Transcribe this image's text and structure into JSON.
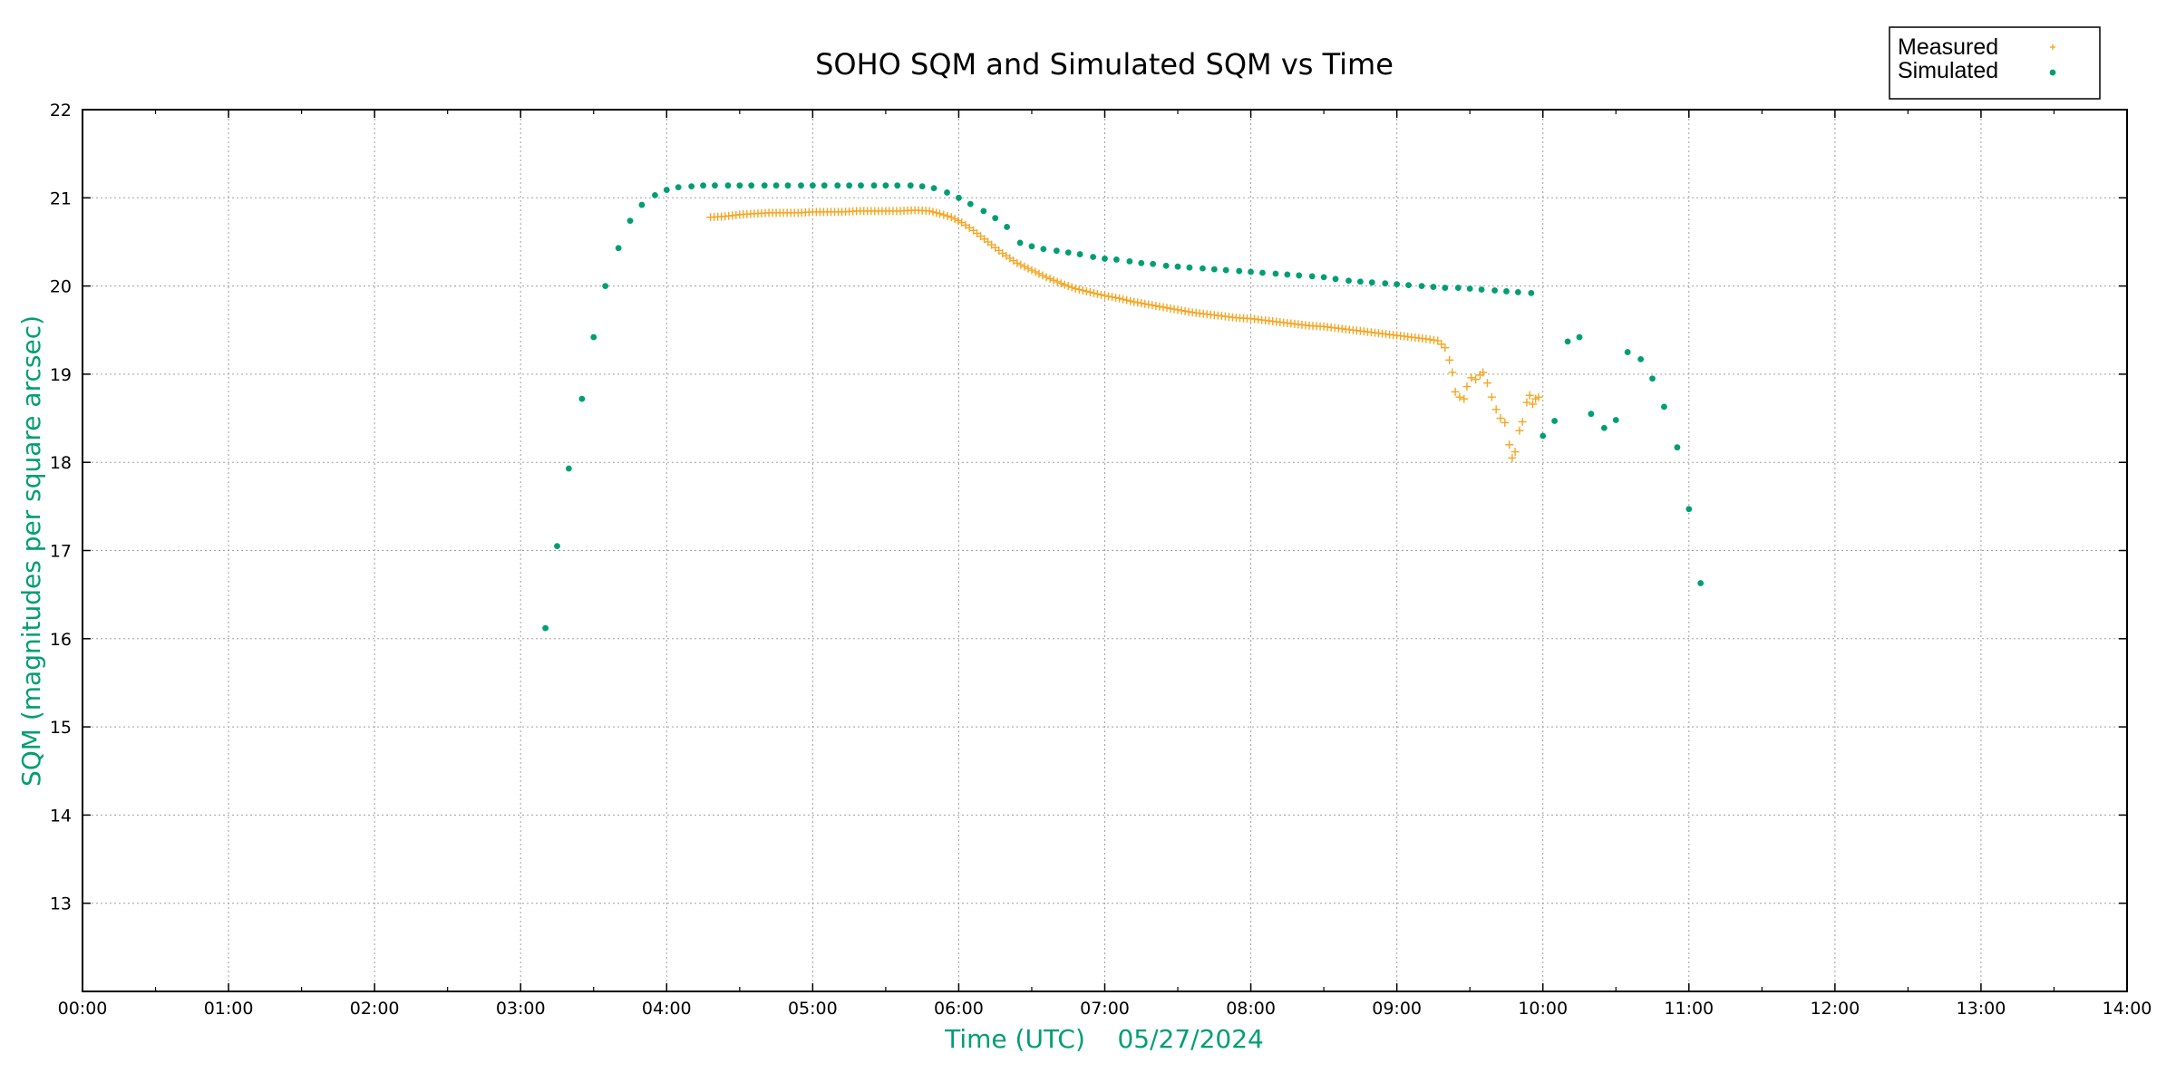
{
  "chart_data": {
    "type": "scatter",
    "title": "SOHO SQM and Simulated SQM vs Time",
    "xlabel": "Time (UTC)    05/27/2024",
    "ylabel": "SQM (magnitudes per square arcsec)",
    "x_unit": "hours UTC",
    "xlim": [
      0,
      14
    ],
    "ylim": [
      12,
      22
    ],
    "xticks": [
      "00:00",
      "01:00",
      "02:00",
      "03:00",
      "04:00",
      "05:00",
      "06:00",
      "07:00",
      "08:00",
      "09:00",
      "10:00",
      "11:00",
      "12:00",
      "13:00",
      "14:00"
    ],
    "yticks": [
      "13",
      "14",
      "15",
      "16",
      "17",
      "18",
      "19",
      "20",
      "21",
      "22"
    ],
    "grid": true,
    "legend_position": "top-right, outside plot",
    "colors": {
      "measured": "#f5a623",
      "simulated": "#009e73",
      "axis_title": "#009e73",
      "grid": "#a0a0a0"
    },
    "series": [
      {
        "name": "Measured",
        "marker": "plus",
        "color": "#f5a623",
        "points": [
          [
            4.3,
            20.78
          ],
          [
            4.4,
            20.79
          ],
          [
            4.5,
            20.81
          ],
          [
            4.6,
            20.82
          ],
          [
            4.7,
            20.83
          ],
          [
            4.8,
            20.83
          ],
          [
            4.9,
            20.83
          ],
          [
            5.0,
            20.84
          ],
          [
            5.1,
            20.84
          ],
          [
            5.2,
            20.84
          ],
          [
            5.3,
            20.85
          ],
          [
            5.4,
            20.85
          ],
          [
            5.5,
            20.85
          ],
          [
            5.6,
            20.85
          ],
          [
            5.7,
            20.86
          ],
          [
            5.8,
            20.85
          ],
          [
            5.87,
            20.82
          ],
          [
            5.95,
            20.78
          ],
          [
            6.02,
            20.72
          ],
          [
            6.1,
            20.63
          ],
          [
            6.2,
            20.5
          ],
          [
            6.3,
            20.37
          ],
          [
            6.4,
            20.26
          ],
          [
            6.5,
            20.18
          ],
          [
            6.6,
            20.1
          ],
          [
            6.7,
            20.03
          ],
          [
            6.8,
            19.97
          ],
          [
            6.9,
            19.93
          ],
          [
            7.0,
            19.89
          ],
          [
            7.1,
            19.86
          ],
          [
            7.2,
            19.82
          ],
          [
            7.3,
            19.79
          ],
          [
            7.4,
            19.76
          ],
          [
            7.5,
            19.73
          ],
          [
            7.6,
            19.7
          ],
          [
            7.7,
            19.68
          ],
          [
            7.8,
            19.66
          ],
          [
            7.9,
            19.64
          ],
          [
            8.0,
            19.63
          ],
          [
            8.1,
            19.61
          ],
          [
            8.2,
            19.59
          ],
          [
            8.3,
            19.57
          ],
          [
            8.4,
            19.55
          ],
          [
            8.5,
            19.54
          ],
          [
            8.6,
            19.52
          ],
          [
            8.7,
            19.5
          ],
          [
            8.8,
            19.48
          ],
          [
            8.9,
            19.46
          ],
          [
            9.0,
            19.44
          ],
          [
            9.1,
            19.42
          ],
          [
            9.2,
            19.4
          ],
          [
            9.28,
            19.38
          ],
          [
            9.33,
            19.3
          ],
          [
            9.36,
            19.16
          ],
          [
            9.38,
            19.02
          ],
          [
            9.4,
            18.8
          ],
          [
            9.43,
            18.74
          ],
          [
            9.46,
            18.72
          ],
          [
            9.48,
            18.86
          ],
          [
            9.51,
            18.96
          ],
          [
            9.54,
            18.94
          ],
          [
            9.57,
            18.99
          ],
          [
            9.59,
            19.02
          ],
          [
            9.62,
            18.9
          ],
          [
            9.65,
            18.74
          ],
          [
            9.68,
            18.6
          ],
          [
            9.71,
            18.5
          ],
          [
            9.74,
            18.45
          ],
          [
            9.77,
            18.2
          ],
          [
            9.79,
            18.05
          ],
          [
            9.81,
            18.12
          ],
          [
            9.84,
            18.36
          ],
          [
            9.86,
            18.46
          ],
          [
            9.89,
            18.68
          ],
          [
            9.91,
            18.76
          ],
          [
            9.93,
            18.66
          ],
          [
            9.95,
            18.72
          ],
          [
            9.97,
            18.74
          ]
        ]
      },
      {
        "name": "Simulated",
        "marker": "dot",
        "color": "#009e73",
        "points": [
          [
            3.17,
            16.12
          ],
          [
            3.25,
            17.05
          ],
          [
            3.33,
            17.93
          ],
          [
            3.42,
            18.72
          ],
          [
            3.5,
            19.42
          ],
          [
            3.58,
            20.0
          ],
          [
            3.67,
            20.43
          ],
          [
            3.75,
            20.74
          ],
          [
            3.83,
            20.92
          ],
          [
            3.92,
            21.03
          ],
          [
            4.0,
            21.09
          ],
          [
            4.08,
            21.12
          ],
          [
            4.17,
            21.13
          ],
          [
            4.25,
            21.14
          ],
          [
            4.33,
            21.14
          ],
          [
            4.42,
            21.14
          ],
          [
            4.5,
            21.14
          ],
          [
            4.58,
            21.14
          ],
          [
            4.67,
            21.14
          ],
          [
            4.75,
            21.14
          ],
          [
            4.83,
            21.14
          ],
          [
            4.92,
            21.14
          ],
          [
            5.0,
            21.14
          ],
          [
            5.08,
            21.14
          ],
          [
            5.17,
            21.14
          ],
          [
            5.25,
            21.14
          ],
          [
            5.33,
            21.14
          ],
          [
            5.42,
            21.14
          ],
          [
            5.5,
            21.14
          ],
          [
            5.58,
            21.14
          ],
          [
            5.67,
            21.14
          ],
          [
            5.75,
            21.13
          ],
          [
            5.83,
            21.11
          ],
          [
            5.92,
            21.06
          ],
          [
            6.0,
            21.0
          ],
          [
            6.08,
            20.93
          ],
          [
            6.17,
            20.85
          ],
          [
            6.25,
            20.77
          ],
          [
            6.33,
            20.67
          ],
          [
            6.42,
            20.49
          ],
          [
            6.5,
            20.45
          ],
          [
            6.58,
            20.42
          ],
          [
            6.67,
            20.4
          ],
          [
            6.75,
            20.38
          ],
          [
            6.83,
            20.36
          ],
          [
            6.92,
            20.33
          ],
          [
            7.0,
            20.31
          ],
          [
            7.08,
            20.3
          ],
          [
            7.17,
            20.28
          ],
          [
            7.25,
            20.26
          ],
          [
            7.33,
            20.25
          ],
          [
            7.42,
            20.23
          ],
          [
            7.5,
            20.22
          ],
          [
            7.58,
            20.21
          ],
          [
            7.67,
            20.2
          ],
          [
            7.75,
            20.19
          ],
          [
            7.83,
            20.18
          ],
          [
            7.92,
            20.17
          ],
          [
            8.0,
            20.16
          ],
          [
            8.08,
            20.15
          ],
          [
            8.17,
            20.14
          ],
          [
            8.25,
            20.13
          ],
          [
            8.33,
            20.12
          ],
          [
            8.42,
            20.11
          ],
          [
            8.5,
            20.1
          ],
          [
            8.58,
            20.08
          ],
          [
            8.67,
            20.06
          ],
          [
            8.75,
            20.05
          ],
          [
            8.83,
            20.04
          ],
          [
            8.92,
            20.03
          ],
          [
            9.0,
            20.02
          ],
          [
            9.08,
            20.01
          ],
          [
            9.17,
            20.0
          ],
          [
            9.25,
            19.99
          ],
          [
            9.33,
            19.98
          ],
          [
            9.42,
            19.98
          ],
          [
            9.5,
            19.97
          ],
          [
            9.58,
            19.96
          ],
          [
            9.67,
            19.95
          ],
          [
            9.75,
            19.94
          ],
          [
            9.83,
            19.93
          ],
          [
            9.92,
            19.92
          ],
          [
            10.0,
            18.3
          ],
          [
            10.08,
            18.47
          ],
          [
            10.17,
            19.37
          ],
          [
            10.25,
            19.42
          ],
          [
            10.33,
            18.55
          ],
          [
            10.42,
            18.39
          ],
          [
            10.5,
            18.48
          ],
          [
            10.58,
            19.25
          ],
          [
            10.67,
            19.17
          ],
          [
            10.75,
            18.95
          ],
          [
            10.83,
            18.63
          ],
          [
            10.92,
            18.17
          ],
          [
            11.0,
            17.47
          ],
          [
            11.08,
            16.63
          ]
        ]
      }
    ]
  }
}
